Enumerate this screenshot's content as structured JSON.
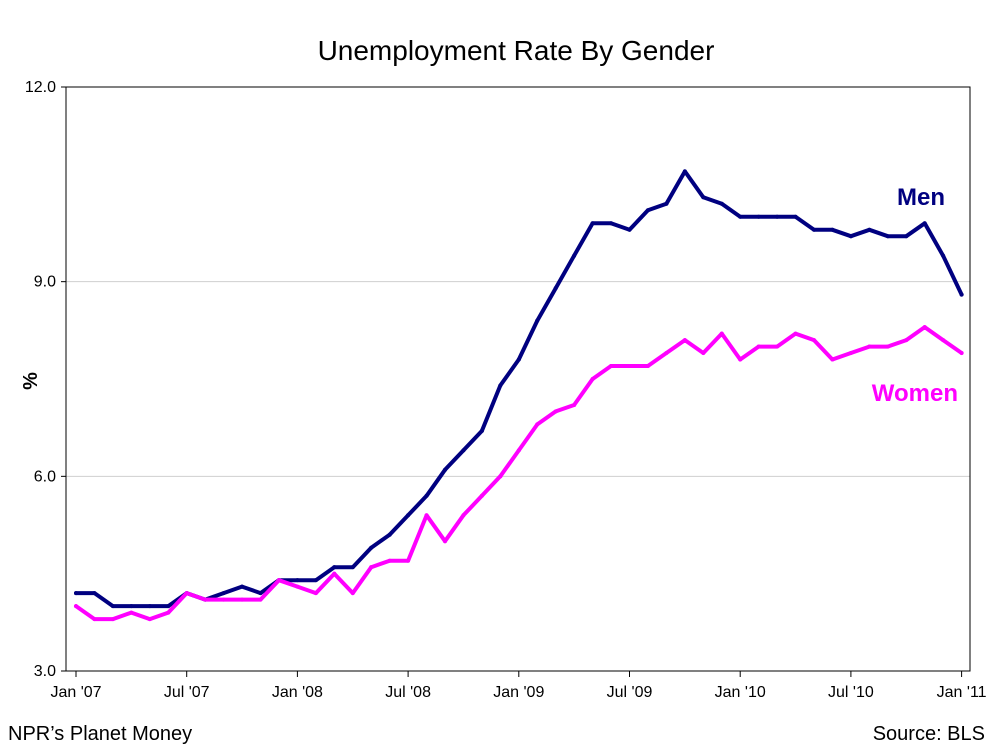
{
  "chart_data": {
    "type": "line",
    "title": "Unemployment Rate By Gender",
    "xlabel": "",
    "ylabel": "%",
    "ylim": [
      3.0,
      12.0
    ],
    "yticks": [
      "3.0",
      "6.0",
      "9.0",
      "12.0"
    ],
    "ytick_values": [
      3.0,
      6.0,
      9.0,
      12.0
    ],
    "xticks": [
      "Jan '07",
      "Jul '07",
      "Jan '08",
      "Jul '08",
      "Jan '09",
      "Jul '09",
      "Jan '10",
      "Jul '10",
      "Jan '11"
    ],
    "xtick_values": [
      "2007-01",
      "2007-07",
      "2008-01",
      "2008-07",
      "2009-01",
      "2009-07",
      "2010-01",
      "2010-07",
      "2011-01"
    ],
    "grid": "horizontal",
    "x": [
      "2007-01",
      "2007-02",
      "2007-03",
      "2007-04",
      "2007-05",
      "2007-06",
      "2007-07",
      "2007-08",
      "2007-09",
      "2007-10",
      "2007-11",
      "2007-12",
      "2008-01",
      "2008-02",
      "2008-03",
      "2008-04",
      "2008-05",
      "2008-06",
      "2008-07",
      "2008-08",
      "2008-09",
      "2008-10",
      "2008-11",
      "2008-12",
      "2009-01",
      "2009-02",
      "2009-03",
      "2009-04",
      "2009-05",
      "2009-06",
      "2009-07",
      "2009-08",
      "2009-09",
      "2009-10",
      "2009-11",
      "2009-12",
      "2010-01",
      "2010-02",
      "2010-03",
      "2010-04",
      "2010-05",
      "2010-06",
      "2010-07",
      "2010-08",
      "2010-09",
      "2010-10",
      "2010-11",
      "2010-12",
      "2011-01"
    ],
    "series": [
      {
        "name": "Men",
        "color": "#000080",
        "values": [
          4.2,
          4.2,
          4.0,
          4.0,
          4.0,
          4.0,
          4.2,
          4.1,
          4.2,
          4.3,
          4.2,
          4.4,
          4.4,
          4.4,
          4.6,
          4.6,
          4.9,
          5.1,
          5.4,
          5.7,
          6.1,
          6.4,
          6.7,
          7.4,
          7.8,
          8.4,
          8.9,
          9.4,
          9.9,
          9.9,
          9.8,
          10.1,
          10.2,
          10.7,
          10.3,
          10.2,
          10.0,
          10.0,
          10.0,
          10.0,
          9.8,
          9.8,
          9.7,
          9.8,
          9.7,
          9.7,
          9.9,
          9.4,
          8.8
        ]
      },
      {
        "name": "Women",
        "color": "#ff00ff",
        "values": [
          4.0,
          3.8,
          3.8,
          3.9,
          3.8,
          3.9,
          4.2,
          4.1,
          4.1,
          4.1,
          4.1,
          4.4,
          4.3,
          4.2,
          4.5,
          4.2,
          4.6,
          4.7,
          4.7,
          5.4,
          5.0,
          5.4,
          5.7,
          6.0,
          6.4,
          6.8,
          7.0,
          7.1,
          7.5,
          7.7,
          7.7,
          7.7,
          7.9,
          8.1,
          7.9,
          8.2,
          7.8,
          8.0,
          8.0,
          8.2,
          8.1,
          7.8,
          7.9,
          8.0,
          8.0,
          8.1,
          8.3,
          8.1,
          7.9
        ]
      }
    ]
  },
  "footer": {
    "left": "NPR’s Planet Money",
    "right": "Source: BLS"
  }
}
